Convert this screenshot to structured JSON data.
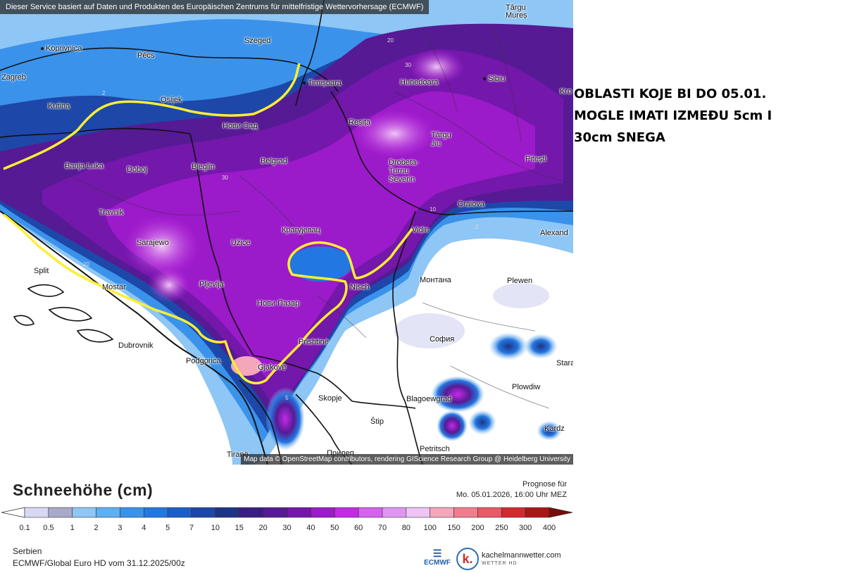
{
  "header_notice": "Dieser Service basiert auf Daten und Produkten des Europäischen Zentrums für mittelfristige Wettervorhersage (ECMWF)",
  "map_attribution": "Map data © OpenStreetMap contributors, rendering GIScience Research Group @ Heidelberg University",
  "annotation": {
    "lines": [
      "OBLASTI KOJE BI DO 05.01.",
      "MOGLE IMATI IZMEĐU 5cm I",
      "30cm SNEGA"
    ],
    "outline_color": "#ffee33"
  },
  "cities": {
    "koprivnica": "Koprivnica",
    "zagreb": "Zagreb",
    "pecs": "Pécs",
    "szeged": "Szeged",
    "targu_mures": "Târgu\nMureș",
    "timisoara": "Timișoara",
    "osijek": "Osijek",
    "kutina": "Kutina",
    "hunedoara": "Hunedoara",
    "sibiu": "Sibiu",
    "novi_sad": "Нови Сад",
    "resita": "Reșița",
    "targu_jiu": "Târgu\nJiu",
    "banja_luka": "Banja Luka",
    "doboj": "Doboj",
    "bieglin": "Bieglin",
    "belgrad": "Belgrad",
    "drobeta": "Drobeta-\nTurnu\nSeverin",
    "pitesti": "Pitești",
    "kro": "Kro",
    "craiova": "Craiova",
    "travnik": "Travnik",
    "kragujevac": "Крагујевац",
    "vidin": "Vidin",
    "alexand": "Alexand",
    "sarajewo": "Sarajewo",
    "uzice": "Užice",
    "split": "Split",
    "mostar": "Mostar",
    "pljevlja": "Pljevlja",
    "nisch": "Nisch",
    "montana": "Монтана",
    "pleven": "Plewen",
    "novi_pazar": "Нови Пазар",
    "dubrovnik": "Dubrovnik",
    "prishtine": "Prishtinë",
    "sofia": "София",
    "podgorica": "Podgorica",
    "gjakove": "Gjakovë",
    "plovdiv": "Plowdiw",
    "stara": "Stara",
    "skopje": "Skopje",
    "blagoevgrad": "Blagoewgrad",
    "stip": "Štip",
    "kardz": "Kardz",
    "tirane": "Tiranë",
    "petritsch": "Petritsch",
    "prilep": "Прилеп"
  },
  "legend": {
    "title": "Schneehöhe (cm)",
    "ticks": [
      "0.1",
      "0.5",
      "1",
      "2",
      "3",
      "4",
      "5",
      "7",
      "10",
      "15",
      "20",
      "30",
      "40",
      "50",
      "60",
      "70",
      "80",
      "100",
      "150",
      "200",
      "250",
      "300",
      "400"
    ],
    "colors": [
      "#d8d8f4",
      "#a9a9c9",
      "#8ec6f5",
      "#5fb0f2",
      "#3a92ea",
      "#2377e0",
      "#1c5ec9",
      "#1d47a8",
      "#1e3484",
      "#3a1d83",
      "#561a94",
      "#7417ab",
      "#9b1ac9",
      "#c42ae6",
      "#d563ee",
      "#e095f2",
      "#eec4f4",
      "#f4a6bb",
      "#f07d8e",
      "#ea5965",
      "#d22a2e",
      "#a91616",
      "#7a0b0b"
    ]
  },
  "forecast": {
    "label": "Prognose für",
    "datetime": "Mo. 05.01.2026, 16:00 Uhr MEZ"
  },
  "footer": {
    "region": "Serbien",
    "model": "ECMWF/Global Euro HD vom  31.12.2025/00z",
    "ecmwf_logo": "ECMWF",
    "brand": "kachelmannwetter.com",
    "brand_sub": "WETTER HD"
  }
}
